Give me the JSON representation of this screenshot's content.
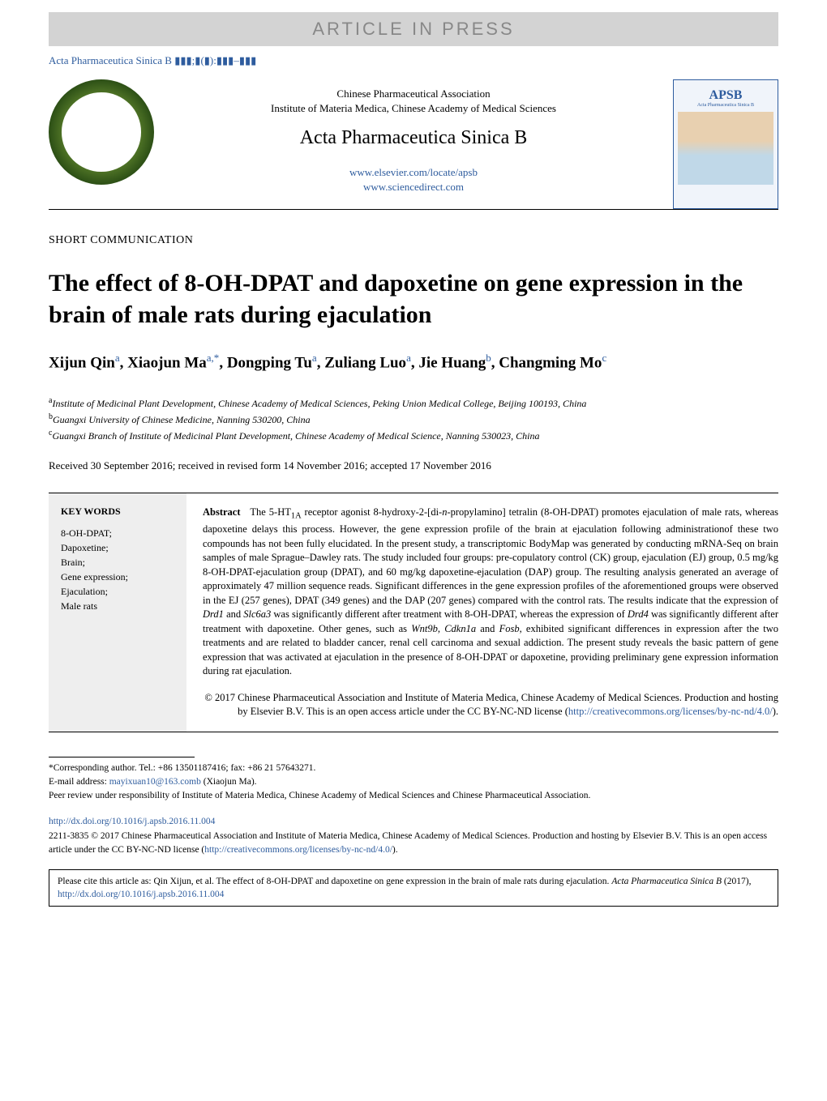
{
  "banner": {
    "press_text": "ARTICLE IN PRESS",
    "press_bg": "#d3d3d3",
    "press_color": "#888888"
  },
  "journal_ref": "Acta Pharmaceutica Sinica B ▮▮▮;▮(▮):▮▮▮–▮▮▮",
  "header": {
    "assoc1": "Chinese Pharmaceutical Association",
    "assoc2": "Institute of Materia Medica, Chinese Academy of Medical Sciences",
    "journal_title": "Acta Pharmaceutica Sinica B",
    "link1": "www.elsevier.com/locate/apsb",
    "link2": "www.sciencedirect.com",
    "apsb_label": "APSB",
    "apsb_sub": "Acta Pharmaceutica Sinica B"
  },
  "article": {
    "type": "SHORT COMMUNICATION",
    "title": "The effect of 8-OH-DPAT and dapoxetine on gene expression in the brain of male rats during ejaculation",
    "authors_html": "Xijun Qin<sup>a</sup>, Xiaojun Ma<sup>a,*</sup>, Dongping Tu<sup>a</sup>, Zuliang Luo<sup>a</sup>, Jie Huang<sup>b</sup>, Changming Mo<sup>c</sup>",
    "affiliations": [
      {
        "sup": "a",
        "text": "Institute of Medicinal Plant Development, Chinese Academy of Medical Sciences, Peking Union Medical College, Beijing 100193, China"
      },
      {
        "sup": "b",
        "text": "Guangxi University of Chinese Medicine, Nanning 530200, China"
      },
      {
        "sup": "c",
        "text": "Guangxi Branch of Institute of Medicinal Plant Development, Chinese Academy of Medical Science, Nanning 530023, China"
      }
    ],
    "dates": "Received 30 September 2016; received in revised form 14 November 2016; accepted 17 November 2016"
  },
  "keywords": {
    "title": "KEY WORDS",
    "items": [
      "8-OH-DPAT;",
      "Dapoxetine;",
      "Brain;",
      "Gene expression;",
      "Ejaculation;",
      "Male rats"
    ]
  },
  "abstract": {
    "label": "Abstract",
    "body_html": "The 5-HT<sub>1A</sub> receptor agonist 8-hydroxy-2-[di-<i>n</i>-propylamino] tetralin (8-OH-DPAT) promotes ejaculation of male rats, whereas dapoxetine delays this process. However, the gene expression profile of the brain at ejaculation following administrationof these two compounds has not been fully elucidated. In the present study, a transcriptomic BodyMap was generated by conducting mRNA-Seq on brain samples of male Sprague–Dawley rats. The study included four groups: pre-copulatory control (CK) group, ejaculation (EJ) group, 0.5 mg/kg 8-OH-DPAT-ejaculation group (DPAT), and 60 mg/kg dapoxetine-ejaculation (DAP) group. The resulting analysis generated an average of approximately 47 million sequence reads. Significant differences in the gene expression profiles of the aforementioned groups were observed in the EJ (257 genes), DPAT (349 genes) and the DAP (207 genes) compared with the control rats. The results indicate that the expression of <i>Drd1</i> and <i>Slc6a3</i> was significantly different after treatment with 8-OH-DPAT, whereas the expression of <i>Drd4</i> was significantly different after treatment with dapoxetine. Other genes, such as <i>Wnt9b</i>, <i>Cdkn1a</i> and <i>Fosb</i>, exhibited significant differences in expression after the two treatments and are related to bladder cancer, renal cell carcinoma and sexual addiction. The present study reveals the basic pattern of gene expression that was activated at ejaculation in the presence of 8-OH-DPAT or dapoxetine, providing preliminary gene expression information during rat ejaculation.",
    "copyright_html": "© 2017 Chinese Pharmaceutical Association and Institute of Materia Medica, Chinese Academy of Medical Sciences. Production and hosting by Elsevier B.V. This is an open access article under the CC BY-NC-ND license (<a>http://creativecommons.org/licenses/by-nc-nd/4.0/</a>)."
  },
  "footer": {
    "corresponding": "*Corresponding author. Tel.: +86 13501187416; fax: +86 21 57643271.",
    "email_label": "E-mail address: ",
    "email": "mayixuan10@163.comb",
    "email_name": " (Xiaojun Ma).",
    "peer_review": "Peer review under responsibility of Institute of Materia Medica, Chinese Academy of Medical Sciences and Chinese Pharmaceutical Association."
  },
  "doi": {
    "link": "http://dx.doi.org/10.1016/j.apsb.2016.11.004",
    "issn_text": "2211-3835 © 2017 Chinese Pharmaceutical Association and Institute of Materia Medica, Chinese Academy of Medical Sciences. Production and hosting by Elsevier B.V. This is an open access article under the CC BY-NC-ND license (",
    "cc_link": "http://creativecommons.org/licenses/by-nc-nd/4.0/",
    "issn_end": ")."
  },
  "citation": {
    "text_pre": "Please cite this article as: Qin Xijun, et al. The effect of 8-OH-DPAT and dapoxetine on gene expression in the brain of male rats during ejaculation. ",
    "journal": "Acta Pharmaceutica Sinica B",
    "year": " (2017), ",
    "link": "http://dx.doi.org/10.1016/j.apsb.2016.11.004"
  },
  "colors": {
    "link_blue": "#2e5c9e",
    "gray_bg": "#eeeeee",
    "press_bg": "#d3d3d3"
  }
}
